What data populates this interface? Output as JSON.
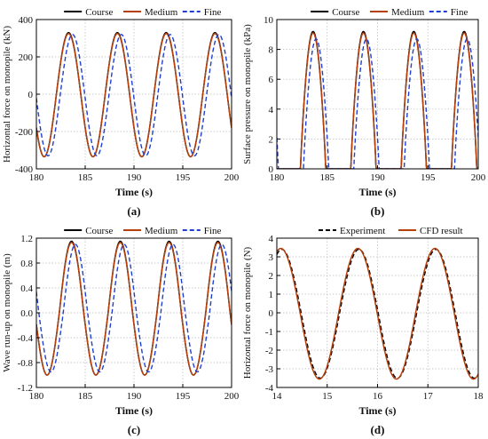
{
  "chart_data": [
    {
      "type": "line",
      "panel_label": "(a)",
      "xlabel": "Time (s)",
      "ylabel": "Horizontal force on monopile (kN)",
      "xlim": [
        180,
        200
      ],
      "ylim": [
        -400,
        400
      ],
      "xticks": [
        180,
        185,
        190,
        195,
        200
      ],
      "yticks": [
        -400,
        -200,
        0,
        200,
        400
      ],
      "grid": true,
      "legend_position": "top",
      "series": [
        {
          "name": "Course",
          "color": "#000000",
          "style": "solid",
          "period": 5,
          "peak_times": [
            183.3,
            188.3,
            193.3,
            198.3
          ],
          "max": 330,
          "min": -335
        },
        {
          "name": "Medium",
          "color": "#b5400c",
          "style": "solid",
          "period": 5,
          "peak_times": [
            183.3,
            188.3,
            193.3,
            198.3
          ],
          "max": 325,
          "min": -335
        },
        {
          "name": "Fine",
          "color": "#1f3fd1",
          "style": "dashed",
          "period": 5,
          "peak_times": [
            183.7,
            188.7,
            193.7,
            198.7
          ],
          "max": 320,
          "min": -330
        }
      ]
    },
    {
      "type": "line",
      "panel_label": "(b)",
      "xlabel": "Time (s)",
      "ylabel": "Surface pressure on monopile (kPa)",
      "xlim": [
        180,
        200
      ],
      "ylim": [
        0,
        10
      ],
      "xticks": [
        180,
        185,
        190,
        195,
        200
      ],
      "yticks": [
        0,
        2,
        4,
        6,
        8,
        10
      ],
      "grid": true,
      "legend_position": "top",
      "series": [
        {
          "name": "Course",
          "color": "#000000",
          "style": "solid",
          "period": 5,
          "peak_times": [
            183.6,
            188.6,
            193.6,
            198.6
          ],
          "max": 9.2,
          "min": 0
        },
        {
          "name": "Medium",
          "color": "#b5400c",
          "style": "solid",
          "period": 5,
          "peak_times": [
            183.6,
            188.6,
            193.6,
            198.6
          ],
          "max": 9.1,
          "min": 0
        },
        {
          "name": "Fine",
          "color": "#1f3fd1",
          "style": "dashed",
          "period": 5,
          "peak_times": [
            183.9,
            188.9,
            193.9,
            198.9
          ],
          "max": 8.7,
          "min": 0
        }
      ]
    },
    {
      "type": "line",
      "panel_label": "(c)",
      "xlabel": "Time (s)",
      "ylabel": "Wave run-up on monopile (m)",
      "xlim": [
        180,
        200
      ],
      "ylim": [
        -1.2,
        1.2
      ],
      "xticks": [
        180,
        185,
        190,
        195,
        200
      ],
      "yticks": [
        -1.2,
        -0.8,
        -0.4,
        0.0,
        0.4,
        0.8,
        1.2
      ],
      "grid": true,
      "legend_position": "top",
      "series": [
        {
          "name": "Course",
          "color": "#000000",
          "style": "solid",
          "period": 5,
          "peak_times": [
            183.6,
            188.6,
            193.6,
            198.6
          ],
          "max": 1.15,
          "min": -1.0
        },
        {
          "name": "Medium",
          "color": "#b5400c",
          "style": "solid",
          "period": 5,
          "peak_times": [
            183.6,
            188.6,
            193.6,
            198.6
          ],
          "max": 1.13,
          "min": -1.0
        },
        {
          "name": "Fine",
          "color": "#1f3fd1",
          "style": "dashed",
          "period": 5,
          "peak_times": [
            184.0,
            189.0,
            194.0,
            199.0
          ],
          "max": 1.1,
          "min": -0.95
        }
      ]
    },
    {
      "type": "line",
      "panel_label": "(d)",
      "xlabel": "Time (s)",
      "ylabel": "Horizontal force on monopile (N)",
      "xlim": [
        14,
        18
      ],
      "ylim": [
        -4,
        4
      ],
      "xticks": [
        14,
        15,
        16,
        17,
        18
      ],
      "yticks": [
        -4,
        -3,
        -2,
        -1,
        0,
        1,
        2,
        3,
        4
      ],
      "grid": true,
      "legend_position": "top",
      "series": [
        {
          "name": "Experiment",
          "color": "#000000",
          "style": "dashed",
          "period": 1.53,
          "peak_times": [
            14.1,
            15.63,
            17.16
          ],
          "max": 3.4,
          "min": -3.5
        },
        {
          "name": "CFD result",
          "color": "#b5400c",
          "style": "solid",
          "period": 1.53,
          "peak_times": [
            14.08,
            15.61,
            17.14
          ],
          "max": 3.45,
          "min": -3.55
        }
      ]
    }
  ]
}
